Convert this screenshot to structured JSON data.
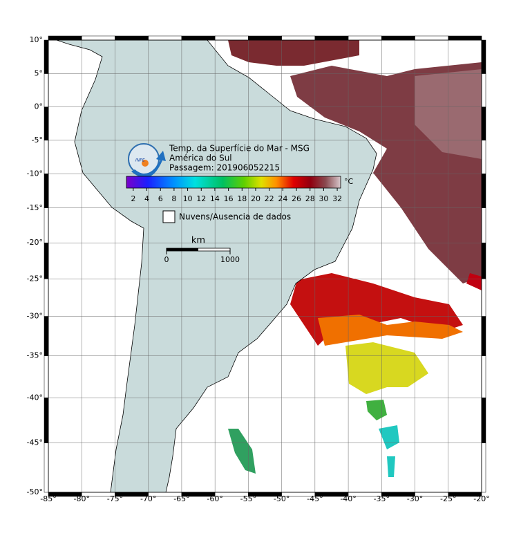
{
  "map": {
    "title": "Temp. da Superfície do Mar - MSG",
    "region": "América do Sul",
    "pass": "Passagem: 201906052215",
    "logo": "INPE",
    "xlim": [
      -85,
      -20
    ],
    "ylim": [
      -50,
      10
    ],
    "xticks": [
      {
        "value": -85,
        "label": "-85°"
      },
      {
        "value": -80,
        "label": "-80°"
      },
      {
        "value": -75,
        "label": "-75°"
      },
      {
        "value": -70,
        "label": "-70°"
      },
      {
        "value": -65,
        "label": "-65°"
      },
      {
        "value": -60,
        "label": "-60°"
      },
      {
        "value": -55,
        "label": "-55°"
      },
      {
        "value": -50,
        "label": "-50°"
      },
      {
        "value": -45,
        "label": "-45°"
      },
      {
        "value": -40,
        "label": "-40°"
      },
      {
        "value": -35,
        "label": "-35°"
      },
      {
        "value": -30,
        "label": "-30°"
      },
      {
        "value": -25,
        "label": "-25°"
      },
      {
        "value": -20,
        "label": "-20°"
      }
    ],
    "yticks": [
      {
        "value": 10,
        "label": "10°"
      },
      {
        "value": 5,
        "label": "5°"
      },
      {
        "value": 0,
        "label": "0°"
      },
      {
        "value": -5,
        "label": "-5°"
      },
      {
        "value": -10,
        "label": "-10°"
      },
      {
        "value": -15,
        "label": "-15°"
      },
      {
        "value": -20,
        "label": "-20°"
      },
      {
        "value": -25,
        "label": "-25°"
      },
      {
        "value": -30,
        "label": "-30°"
      },
      {
        "value": -35,
        "label": "-35°"
      },
      {
        "value": -40,
        "label": "-40°"
      },
      {
        "value": -45,
        "label": "-45°"
      },
      {
        "value": -50,
        "label": "-50°"
      }
    ],
    "colorbar": {
      "lim": [
        1,
        32.5
      ],
      "ticks": [
        2,
        4,
        6,
        8,
        10,
        12,
        14,
        16,
        18,
        20,
        22,
        24,
        26,
        28,
        30,
        32
      ],
      "unit": "°C"
    },
    "no_data_label": "Nuvens/Ausencia de dados",
    "scale_bar": {
      "unit": "km",
      "ticks": [
        0,
        1000
      ]
    }
  }
}
